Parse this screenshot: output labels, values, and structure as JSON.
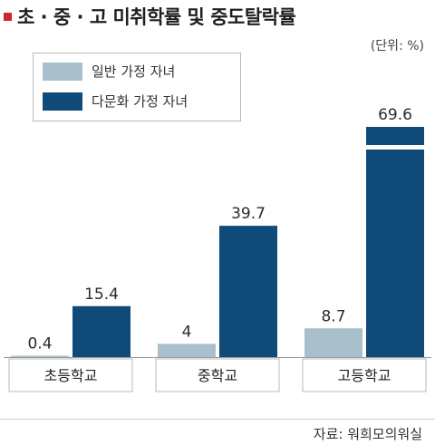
{
  "title": "초 · 중 · 고 미취학률 및 중도탈락률",
  "unit": "(단위: %)",
  "source": "자료: 워희모의워실",
  "colors": {
    "general": "#a9bfcc",
    "multicultural": "#0f4a78",
    "title_marker": "#d0262d"
  },
  "chart_data": {
    "type": "bar",
    "title": "초 · 중 · 고 미취학률 및 중도탈락률",
    "unit": "(단위: %)",
    "categories": [
      "초등학교",
      "중학교",
      "고등학교"
    ],
    "series": [
      {
        "name": "일반 가정 자녀",
        "values": [
          0.4,
          4,
          8.7
        ],
        "labels": [
          "0.4",
          "4",
          "8.7"
        ]
      },
      {
        "name": "다문화 가정 자녀",
        "values": [
          15.4,
          39.7,
          69.6
        ],
        "labels": [
          "15.4",
          "39.7",
          "69.6"
        ]
      }
    ],
    "ylim": [
      0,
      69.6
    ],
    "axis_break": true,
    "grid": false,
    "legend": "top-left"
  }
}
